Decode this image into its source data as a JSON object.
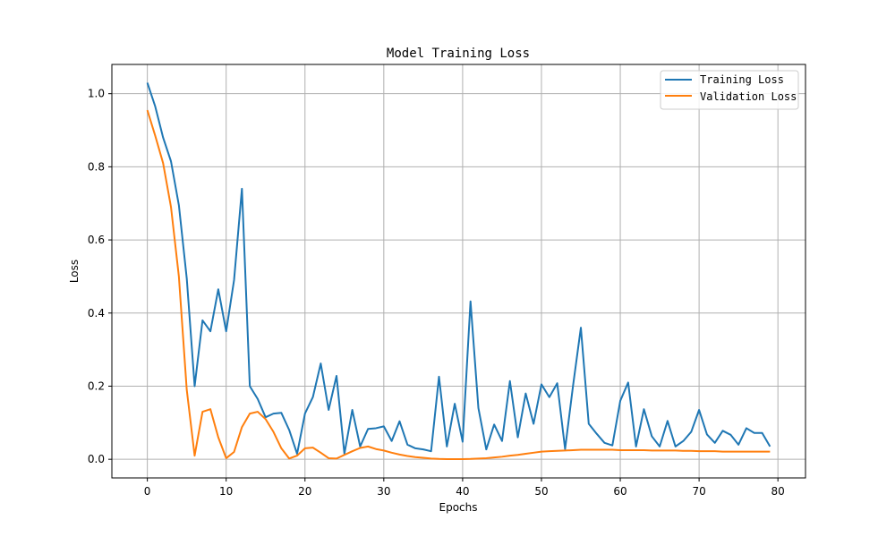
{
  "chart_data": {
    "type": "line",
    "title": "Model Training Loss",
    "xlabel": "Epochs",
    "ylabel": "Loss",
    "xlim": [
      -4.5,
      83.5
    ],
    "ylim": [
      -0.051,
      1.08
    ],
    "x_ticks": [
      0,
      10,
      20,
      30,
      40,
      50,
      60,
      70,
      80
    ],
    "y_ticks": [
      0.0,
      0.2,
      0.4,
      0.6,
      0.8,
      1.0
    ],
    "x_tick_labels": [
      "0",
      "10",
      "20",
      "30",
      "40",
      "50",
      "60",
      "70",
      "80"
    ],
    "y_tick_labels": [
      "0.0",
      "0.2",
      "0.4",
      "0.6",
      "0.8",
      "1.0"
    ],
    "grid": true,
    "legend_position": "top-right",
    "x": [
      0,
      1,
      2,
      3,
      4,
      5,
      6,
      7,
      8,
      9,
      10,
      11,
      12,
      13,
      14,
      15,
      16,
      17,
      18,
      19,
      20,
      21,
      22,
      23,
      24,
      25,
      26,
      27,
      28,
      29,
      30,
      31,
      32,
      33,
      34,
      35,
      36,
      37,
      38,
      39,
      40,
      41,
      42,
      43,
      44,
      45,
      46,
      47,
      48,
      49,
      50,
      51,
      52,
      53,
      54,
      55,
      56,
      57,
      58,
      59,
      60,
      61,
      62,
      63,
      64,
      65,
      66,
      67,
      68,
      69,
      70,
      71,
      72,
      73,
      74,
      75,
      76,
      77,
      78,
      79
    ],
    "series": [
      {
        "name": "Training Loss",
        "color": "#1f77b4",
        "values": [
          1.03,
          0.965,
          0.88,
          0.815,
          0.695,
          0.495,
          0.2,
          0.38,
          0.35,
          0.465,
          0.35,
          0.49,
          0.74,
          0.2,
          0.165,
          0.115,
          0.125,
          0.127,
          0.08,
          0.015,
          0.125,
          0.17,
          0.262,
          0.135,
          0.228,
          0.015,
          0.135,
          0.035,
          0.083,
          0.085,
          0.09,
          0.05,
          0.104,
          0.04,
          0.03,
          0.027,
          0.022,
          0.226,
          0.035,
          0.152,
          0.048,
          0.432,
          0.14,
          0.027,
          0.095,
          0.05,
          0.214,
          0.06,
          0.18,
          0.097,
          0.205,
          0.17,
          0.208,
          0.028,
          0.2,
          0.36,
          0.097,
          0.07,
          0.045,
          0.038,
          0.16,
          0.21,
          0.035,
          0.137,
          0.063,
          0.035,
          0.105,
          0.035,
          0.05,
          0.075,
          0.135,
          0.068,
          0.045,
          0.078,
          0.067,
          0.04,
          0.085,
          0.072,
          0.072,
          0.035
        ]
      },
      {
        "name": "Validation Loss",
        "color": "#ff7f0e",
        "values": [
          0.955,
          0.885,
          0.81,
          0.69,
          0.5,
          0.19,
          0.01,
          0.13,
          0.137,
          0.06,
          0.003,
          0.02,
          0.088,
          0.125,
          0.13,
          0.11,
          0.075,
          0.03,
          0.002,
          0.01,
          0.03,
          0.032,
          0.018,
          0.003,
          0.002,
          0.012,
          0.022,
          0.031,
          0.035,
          0.028,
          0.024,
          0.018,
          0.013,
          0.009,
          0.006,
          0.004,
          0.002,
          0.001,
          0.0005,
          0.0005,
          0.0005,
          0.001,
          0.002,
          0.003,
          0.005,
          0.007,
          0.01,
          0.012,
          0.015,
          0.018,
          0.021,
          0.022,
          0.023,
          0.024,
          0.025,
          0.026,
          0.026,
          0.026,
          0.026,
          0.026,
          0.025,
          0.025,
          0.025,
          0.025,
          0.024,
          0.024,
          0.024,
          0.024,
          0.023,
          0.023,
          0.022,
          0.022,
          0.022,
          0.021,
          0.021,
          0.021,
          0.021,
          0.021,
          0.021,
          0.021
        ]
      }
    ]
  }
}
